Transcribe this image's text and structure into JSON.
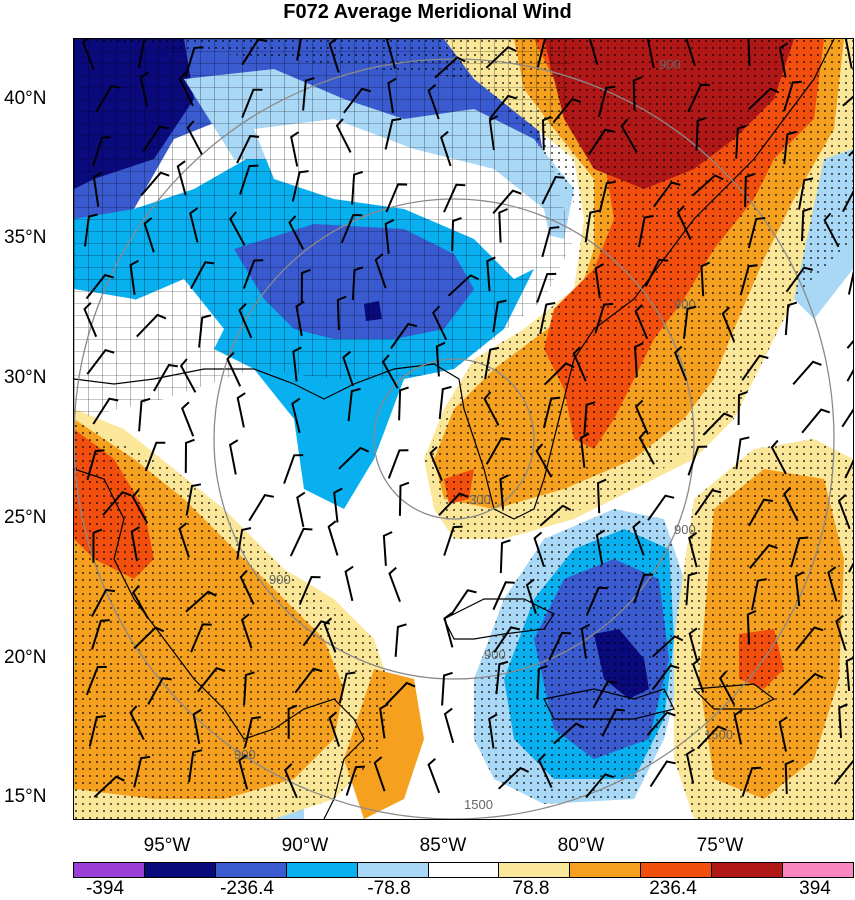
{
  "title": "F072 Average Meridional Wind",
  "lat_labels": [
    "40°N",
    "35°N",
    "30°N",
    "25°N",
    "20°N",
    "15°N"
  ],
  "lon_labels": [
    "95°W",
    "90°W",
    "85°W",
    "80°W",
    "75°W"
  ],
  "colorbar": {
    "colors": [
      "#9a3ed6",
      "#0a0a7c",
      "#3a5ad0",
      "#08b0f0",
      "#a8d8f5",
      "#ffffff",
      "#fbe79a",
      "#f5a01e",
      "#f24e0d",
      "#b01818",
      "#fa87c0"
    ],
    "labels": [
      "-394",
      "-236.4",
      "-78.8",
      "78.8",
      "236.4",
      "394"
    ]
  },
  "contour_labels": [
    "900",
    "900",
    "900",
    "900",
    "900",
    "300",
    "1500",
    "1500",
    "900"
  ]
}
